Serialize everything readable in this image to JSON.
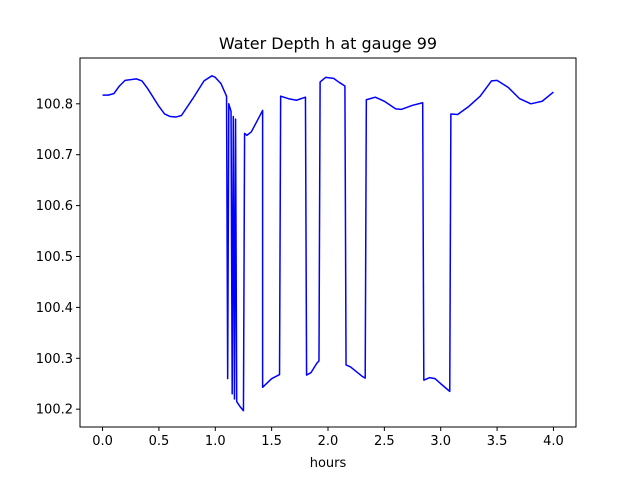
{
  "chart_data": {
    "type": "line",
    "title": "Water Depth h at gauge 99",
    "xlabel": "hours",
    "ylabel": "",
    "xlim": [
      -0.2,
      4.2
    ],
    "ylim": [
      100.165,
      100.89
    ],
    "xticks": [
      0.0,
      0.5,
      1.0,
      1.5,
      2.0,
      2.5,
      3.0,
      3.5,
      4.0
    ],
    "xtick_labels": [
      "0.0",
      "0.5",
      "1.0",
      "1.5",
      "2.0",
      "2.5",
      "3.0",
      "3.5",
      "4.0"
    ],
    "yticks": [
      100.2,
      100.3,
      100.4,
      100.5,
      100.6,
      100.7,
      100.8
    ],
    "ytick_labels": [
      "100.2",
      "100.3",
      "100.4",
      "100.5",
      "100.6",
      "100.7",
      "100.8"
    ],
    "grid": false,
    "legend": "none",
    "series": [
      {
        "color": "#0000ff",
        "points": [
          [
            0.0,
            100.817
          ],
          [
            0.05,
            100.817
          ],
          [
            0.1,
            100.82
          ],
          [
            0.15,
            100.835
          ],
          [
            0.2,
            100.846
          ],
          [
            0.3,
            100.849
          ],
          [
            0.35,
            100.845
          ],
          [
            0.4,
            100.83
          ],
          [
            0.5,
            100.795
          ],
          [
            0.55,
            100.78
          ],
          [
            0.6,
            100.775
          ],
          [
            0.65,
            100.774
          ],
          [
            0.7,
            100.777
          ],
          [
            0.8,
            100.81
          ],
          [
            0.9,
            100.845
          ],
          [
            0.97,
            100.855
          ],
          [
            1.0,
            100.852
          ],
          [
            1.05,
            100.84
          ],
          [
            1.1,
            100.815
          ],
          [
            1.11,
            100.26
          ],
          [
            1.12,
            100.8
          ],
          [
            1.14,
            100.785
          ],
          [
            1.15,
            100.23
          ],
          [
            1.16,
            100.775
          ],
          [
            1.17,
            100.22
          ],
          [
            1.18,
            100.77
          ],
          [
            1.19,
            100.215
          ],
          [
            1.22,
            100.205
          ],
          [
            1.25,
            100.197
          ],
          [
            1.26,
            100.742
          ],
          [
            1.28,
            100.738
          ],
          [
            1.32,
            100.745
          ],
          [
            1.38,
            100.77
          ],
          [
            1.42,
            100.787
          ],
          [
            1.42,
            100.243
          ],
          [
            1.5,
            100.26
          ],
          [
            1.57,
            100.268
          ],
          [
            1.58,
            100.815
          ],
          [
            1.65,
            100.81
          ],
          [
            1.72,
            100.807
          ],
          [
            1.8,
            100.813
          ],
          [
            1.81,
            100.267
          ],
          [
            1.85,
            100.272
          ],
          [
            1.9,
            100.29
          ],
          [
            1.92,
            100.295
          ],
          [
            1.93,
            100.843
          ],
          [
            1.98,
            100.852
          ],
          [
            2.05,
            100.85
          ],
          [
            2.1,
            100.842
          ],
          [
            2.15,
            100.835
          ],
          [
            2.16,
            100.287
          ],
          [
            2.2,
            100.283
          ],
          [
            2.3,
            100.265
          ],
          [
            2.33,
            100.261
          ],
          [
            2.34,
            100.808
          ],
          [
            2.42,
            100.813
          ],
          [
            2.5,
            100.805
          ],
          [
            2.6,
            100.79
          ],
          [
            2.65,
            100.789
          ],
          [
            2.75,
            100.797
          ],
          [
            2.84,
            100.802
          ],
          [
            2.85,
            100.257
          ],
          [
            2.9,
            100.262
          ],
          [
            2.95,
            100.26
          ],
          [
            3.0,
            100.25
          ],
          [
            3.08,
            100.235
          ],
          [
            3.09,
            100.78
          ],
          [
            3.15,
            100.779
          ],
          [
            3.25,
            100.795
          ],
          [
            3.35,
            100.815
          ],
          [
            3.45,
            100.845
          ],
          [
            3.5,
            100.846
          ],
          [
            3.6,
            100.832
          ],
          [
            3.7,
            100.81
          ],
          [
            3.8,
            100.8
          ],
          [
            3.9,
            100.805
          ],
          [
            4.0,
            100.823
          ]
        ]
      }
    ]
  }
}
